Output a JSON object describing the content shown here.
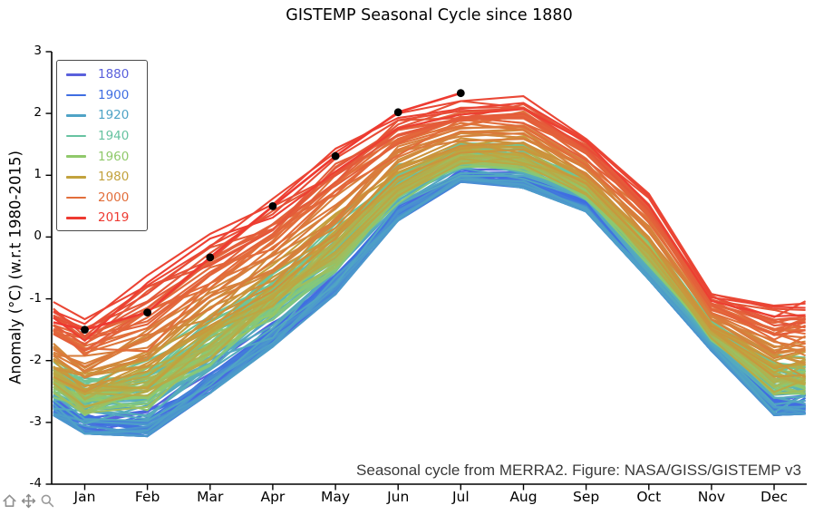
{
  "title": "GISTEMP Seasonal Cycle since 1880",
  "annotation": "Seasonal cycle from MERRA2. Figure: NASA/GISS/GISTEMP v3",
  "y_axis": {
    "label": "Anomaly (°C) (w.r.t 1980-2015)",
    "ticks": [
      3,
      2,
      1,
      0,
      -1,
      -2,
      -3,
      -4
    ],
    "min": -4,
    "max": 3
  },
  "x_axis": {
    "labels": [
      "Jan",
      "Feb",
      "Mar",
      "Apr",
      "May",
      "Jun",
      "Jul",
      "Aug",
      "Sep",
      "Oct",
      "Nov",
      "Dec"
    ],
    "min": 0.5,
    "max": 12.5
  },
  "legend": {
    "entries": [
      {
        "label": "1880",
        "color": "#5a60dc"
      },
      {
        "label": "1900",
        "color": "#3f6ee2"
      },
      {
        "label": "1920",
        "color": "#4fa3c6"
      },
      {
        "label": "1940",
        "color": "#67c3a1"
      },
      {
        "label": "1960",
        "color": "#90c96b"
      },
      {
        "label": "1980",
        "color": "#c2a23d"
      },
      {
        "label": "2000",
        "color": "#e26e3b"
      },
      {
        "label": "2019",
        "color": "#ee3a31"
      }
    ]
  },
  "toolbar": {
    "icons": [
      "home-icon",
      "pan-icon",
      "zoom-icon"
    ]
  },
  "chart_data": {
    "type": "line",
    "x_unit": "month",
    "x_categories": [
      "Jan",
      "Feb",
      "Mar",
      "Apr",
      "May",
      "Jun",
      "Jul",
      "Aug",
      "Sep",
      "Oct",
      "Nov",
      "Dec"
    ],
    "xlim": [
      0.5,
      12.5
    ],
    "ylim": [
      -4,
      3
    ],
    "grid": false,
    "legend_position": "upper-left",
    "description": "One seasonal-cycle line per year 1880-2019, colored by year; 2019 (red) has observed values Jan-Jul marked with black dots",
    "series_x": [
      0.5,
      1,
      2,
      3,
      4,
      5,
      6,
      7,
      8,
      9,
      10,
      11,
      12,
      12.5
    ],
    "series": [
      {
        "name": "1880",
        "color": "#5a60dc",
        "values": [
          -2.7,
          -3.0,
          -3.0,
          -2.35,
          -1.55,
          -0.7,
          0.45,
          1.0,
          0.95,
          0.5,
          -0.55,
          -1.75,
          -2.7,
          -2.7
        ]
      },
      {
        "name": "1900",
        "color": "#3f6ee2",
        "values": [
          -2.65,
          -2.95,
          -3.0,
          -2.3,
          -1.5,
          -0.65,
          0.5,
          1.05,
          0.95,
          0.55,
          -0.5,
          -1.7,
          -2.7,
          -2.65
        ]
      },
      {
        "name": "1920",
        "color": "#4fa3c6",
        "values": [
          -2.5,
          -2.8,
          -2.75,
          -2.05,
          -1.3,
          -0.45,
          0.65,
          1.15,
          1.1,
          0.65,
          -0.4,
          -1.65,
          -2.5,
          -2.5
        ]
      },
      {
        "name": "1940",
        "color": "#67c3a1",
        "values": [
          -2.15,
          -2.45,
          -2.5,
          -1.6,
          -0.9,
          0.0,
          1.0,
          1.45,
          1.4,
          0.9,
          -0.1,
          -1.45,
          -2.15,
          -2.1
        ]
      },
      {
        "name": "1960",
        "color": "#90c96b",
        "values": [
          -2.35,
          -2.65,
          -2.6,
          -1.9,
          -1.1,
          -0.25,
          0.8,
          1.3,
          1.25,
          0.75,
          -0.3,
          -1.55,
          -2.35,
          -2.3
        ]
      },
      {
        "name": "1980",
        "color": "#c2a23d",
        "values": [
          -2.1,
          -2.4,
          -2.45,
          -1.55,
          -0.8,
          0.1,
          1.05,
          1.45,
          1.45,
          0.95,
          -0.05,
          -1.4,
          -2.1,
          -2.05
        ]
      },
      {
        "name": "2000",
        "color": "#e26e3b",
        "values": [
          -1.5,
          -1.8,
          -1.85,
          -0.75,
          -0.1,
          0.85,
          1.65,
          1.9,
          1.95,
          1.35,
          0.4,
          -1.1,
          -1.5,
          -1.45
        ]
      },
      {
        "name": "2019",
        "color": "#ee3a31",
        "x": [
          0.5,
          1,
          2,
          3,
          4,
          5,
          6,
          7
        ],
        "values": [
          -1.38,
          -1.5,
          -1.22,
          -0.33,
          0.5,
          1.31,
          2.02,
          2.33
        ]
      }
    ],
    "markers_2019": {
      "months": [
        1,
        2,
        3,
        4,
        5,
        6,
        7
      ],
      "values": [
        -1.5,
        -1.22,
        -0.33,
        0.5,
        1.31,
        2.02,
        2.33
      ],
      "color": "#000000",
      "radius": 4.4
    },
    "envelope": {
      "months": [
        0.5,
        1,
        2,
        3,
        4,
        5,
        6,
        7,
        8,
        9,
        10,
        11,
        12,
        12.5
      ],
      "top": [
        -1.05,
        -1.33,
        -0.62,
        0.05,
        0.62,
        1.43,
        2.0,
        2.2,
        2.28,
        1.62,
        0.7,
        -0.9,
        -1.08,
        -1.03
      ],
      "bottom": [
        -2.9,
        -3.2,
        -3.25,
        -2.55,
        -1.8,
        -0.95,
        0.25,
        0.88,
        0.78,
        0.4,
        -0.7,
        -1.85,
        -2.9,
        -2.88
      ]
    },
    "bundle": {
      "year_start": 1880,
      "year_end": 2018,
      "jitter": 0.09,
      "year_positions": [
        [
          1880,
          0.14
        ],
        [
          1884,
          0.05
        ],
        [
          1890,
          0.1
        ],
        [
          1896,
          0.06
        ],
        [
          1900,
          0.11
        ],
        [
          1904,
          0.04
        ],
        [
          1910,
          0.03
        ],
        [
          1917,
          0.01
        ],
        [
          1921,
          0.12
        ],
        [
          1926,
          0.22
        ],
        [
          1931,
          0.3
        ],
        [
          1937,
          0.36
        ],
        [
          1941,
          0.44
        ],
        [
          1944,
          0.46
        ],
        [
          1950,
          0.27
        ],
        [
          1956,
          0.24
        ],
        [
          1961,
          0.33
        ],
        [
          1964,
          0.25
        ],
        [
          1969,
          0.33
        ],
        [
          1973,
          0.38
        ],
        [
          1976,
          0.28
        ],
        [
          1981,
          0.48
        ],
        [
          1985,
          0.42
        ],
        [
          1988,
          0.55
        ],
        [
          1991,
          0.57
        ],
        [
          1995,
          0.62
        ],
        [
          1998,
          0.75
        ],
        [
          2001,
          0.7
        ],
        [
          2005,
          0.8
        ],
        [
          2008,
          0.76
        ],
        [
          2010,
          0.85
        ],
        [
          2013,
          0.87
        ],
        [
          2015,
          0.95
        ],
        [
          2016,
          1.0
        ],
        [
          2017,
          0.95
        ],
        [
          2018,
          0.9
        ]
      ]
    },
    "colormap": [
      [
        1880,
        "#5a60dc"
      ],
      [
        1900,
        "#3f6ee2"
      ],
      [
        1920,
        "#4fa3c6"
      ],
      [
        1940,
        "#67c3a1"
      ],
      [
        1960,
        "#90c96b"
      ],
      [
        1980,
        "#c2a23d"
      ],
      [
        2000,
        "#e26e3b"
      ],
      [
        2012,
        "#e4593a"
      ],
      [
        2019,
        "#ee3a31"
      ]
    ]
  }
}
